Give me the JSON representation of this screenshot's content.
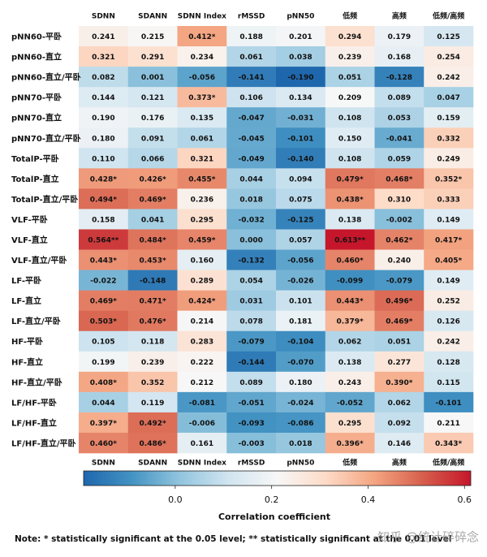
{
  "chart_data": {
    "type": "heatmap",
    "x_categories": [
      "SDNN",
      "SDANN",
      "SDNN Index",
      "rMSSD",
      "pNN50",
      "低频",
      "高频",
      "低频/高频"
    ],
    "y_categories": [
      "pNN60-平卧",
      "pNN60-直立",
      "pNN60-直立/平卧",
      "pNN70-平卧",
      "pNN70-直立",
      "pNN70-直立/平卧",
      "TotalP-平卧",
      "TotalP-直立",
      "TotalP-直立/平卧",
      "VLF-平卧",
      "VLF-直立",
      "VLF-直立/平卧",
      "LF-平卧",
      "LF-直立",
      "LF-直立/平卧",
      "HF-平卧",
      "HF-直立",
      "HF-直立/平卧",
      "LF/HF-平卧",
      "LF/HF-直立",
      "LF/HF-直立/平卧"
    ],
    "values": [
      [
        0.241,
        0.215,
        0.412,
        0.188,
        0.201,
        0.294,
        0.179,
        0.125
      ],
      [
        0.321,
        0.291,
        0.234,
        0.061,
        0.038,
        0.239,
        0.168,
        0.254
      ],
      [
        0.082,
        0.001,
        -0.056,
        -0.141,
        -0.19,
        0.051,
        -0.128,
        0.242
      ],
      [
        0.144,
        0.121,
        0.373,
        0.106,
        0.134,
        0.209,
        0.089,
        0.047
      ],
      [
        0.19,
        0.176,
        0.135,
        -0.047,
        -0.031,
        0.108,
        0.053,
        0.159
      ],
      [
        0.18,
        0.091,
        0.061,
        -0.045,
        -0.101,
        0.15,
        -0.041,
        0.332
      ],
      [
        0.11,
        0.066,
        0.321,
        -0.049,
        -0.14,
        0.108,
        0.059,
        0.249
      ],
      [
        0.428,
        0.426,
        0.455,
        0.044,
        0.094,
        0.479,
        0.468,
        0.352
      ],
      [
        0.494,
        0.469,
        0.236,
        0.018,
        0.075,
        0.438,
        0.31,
        0.333
      ],
      [
        0.158,
        0.041,
        0.295,
        -0.032,
        -0.125,
        0.138,
        -0.002,
        0.149
      ],
      [
        0.564,
        0.484,
        0.459,
        0.0,
        0.057,
        0.613,
        0.462,
        0.417
      ],
      [
        0.443,
        0.453,
        0.16,
        -0.132,
        -0.056,
        0.46,
        0.24,
        0.405
      ],
      [
        -0.022,
        -0.148,
        0.289,
        0.054,
        -0.026,
        -0.099,
        -0.079,
        0.149
      ],
      [
        0.469,
        0.471,
        0.424,
        0.031,
        0.101,
        0.443,
        0.496,
        0.252
      ],
      [
        0.503,
        0.476,
        0.214,
        0.078,
        0.181,
        0.379,
        0.469,
        0.126
      ],
      [
        0.105,
        0.118,
        0.283,
        -0.079,
        -0.104,
        0.062,
        0.051,
        0.242
      ],
      [
        0.199,
        0.239,
        0.222,
        -0.144,
        -0.07,
        0.138,
        0.277,
        0.128
      ],
      [
        0.408,
        0.352,
        0.212,
        0.089,
        0.18,
        0.243,
        0.39,
        0.115
      ],
      [
        0.044,
        0.119,
        -0.081,
        -0.051,
        -0.024,
        -0.052,
        0.062,
        -0.101
      ],
      [
        0.397,
        0.492,
        -0.006,
        -0.093,
        -0.086,
        0.295,
        0.092,
        0.211
      ],
      [
        0.46,
        0.486,
        0.161,
        -0.003,
        0.018,
        0.396,
        0.146,
        0.343
      ]
    ],
    "value_labels": [
      [
        "0.241",
        "0.215",
        "0.412*",
        "0.188",
        "0.201",
        "0.294",
        "0.179",
        "0.125"
      ],
      [
        "0.321",
        "0.291",
        "0.234",
        "0.061",
        "0.038",
        "0.239",
        "0.168",
        "0.254"
      ],
      [
        "0.082",
        "0.001",
        "-0.056",
        "-0.141",
        "-0.190",
        "0.051",
        "-0.128",
        "0.242"
      ],
      [
        "0.144",
        "0.121",
        "0.373*",
        "0.106",
        "0.134",
        "0.209",
        "0.089",
        "0.047"
      ],
      [
        "0.190",
        "0.176",
        "0.135",
        "-0.047",
        "-0.031",
        "0.108",
        "0.053",
        "0.159"
      ],
      [
        "0.180",
        "0.091",
        "0.061",
        "-0.045",
        "-0.101",
        "0.150",
        "-0.041",
        "0.332"
      ],
      [
        "0.110",
        "0.066",
        "0.321",
        "-0.049",
        "-0.140",
        "0.108",
        "0.059",
        "0.249"
      ],
      [
        "0.428*",
        "0.426*",
        "0.455*",
        "0.044",
        "0.094",
        "0.479*",
        "0.468*",
        "0.352*"
      ],
      [
        "0.494*",
        "0.469*",
        "0.236",
        "0.018",
        "0.075",
        "0.438*",
        "0.310",
        "0.333"
      ],
      [
        "0.158",
        "0.041",
        "0.295",
        "-0.032",
        "-0.125",
        "0.138",
        "-0.002",
        "0.149"
      ],
      [
        "0.564**",
        "0.484*",
        "0.459*",
        "0.000",
        "0.057",
        "0.613**",
        "0.462*",
        "0.417*"
      ],
      [
        "0.443*",
        "0.453*",
        "0.160",
        "-0.132",
        "-0.056",
        "0.460*",
        "0.240",
        "0.405*"
      ],
      [
        "-0.022",
        "-0.148",
        "0.289",
        "0.054",
        "-0.026",
        "-0.099",
        "-0.079",
        "0.149"
      ],
      [
        "0.469*",
        "0.471*",
        "0.424*",
        "0.031",
        "0.101",
        "0.443*",
        "0.496*",
        "0.252"
      ],
      [
        "0.503*",
        "0.476*",
        "0.214",
        "0.078",
        "0.181",
        "0.379*",
        "0.469*",
        "0.126"
      ],
      [
        "0.105",
        "0.118",
        "0.283",
        "-0.079",
        "-0.104",
        "0.062",
        "0.051",
        "0.242"
      ],
      [
        "0.199",
        "0.239",
        "0.222",
        "-0.144",
        "-0.070",
        "0.138",
        "0.277",
        "0.128"
      ],
      [
        "0.408*",
        "0.352",
        "0.212",
        "0.089",
        "0.180",
        "0.243",
        "0.390*",
        "0.115"
      ],
      [
        "0.044",
        "0.119",
        "-0.081",
        "-0.051",
        "-0.024",
        "-0.052",
        "0.062",
        "-0.101"
      ],
      [
        "0.397*",
        "0.492*",
        "-0.006",
        "-0.093",
        "-0.086",
        "0.295",
        "0.092",
        "0.211"
      ],
      [
        "0.460*",
        "0.486*",
        "0.161",
        "-0.003",
        "0.018",
        "0.396*",
        "0.146",
        "0.343*"
      ]
    ],
    "clim": [
      -0.19,
      0.613
    ],
    "cticks": [
      {
        "value": 0,
        "label": "0.0"
      },
      0.2,
      0.4,
      0.6
    ],
    "colorscale": [
      "#1f67ad",
      "#4393c3",
      "#92c5de",
      "#d1e5f0",
      "#f7f7f7",
      "#fddbc7",
      "#f4a582",
      "#d6604d",
      "#c5162b"
    ],
    "colorbar_label": "Correlation coefficient",
    "note": "Note: * statistically significant at the 0.05 level; ** statistically significant at the 0.01 level",
    "watermark": "知乎 @统计碎碎念"
  }
}
